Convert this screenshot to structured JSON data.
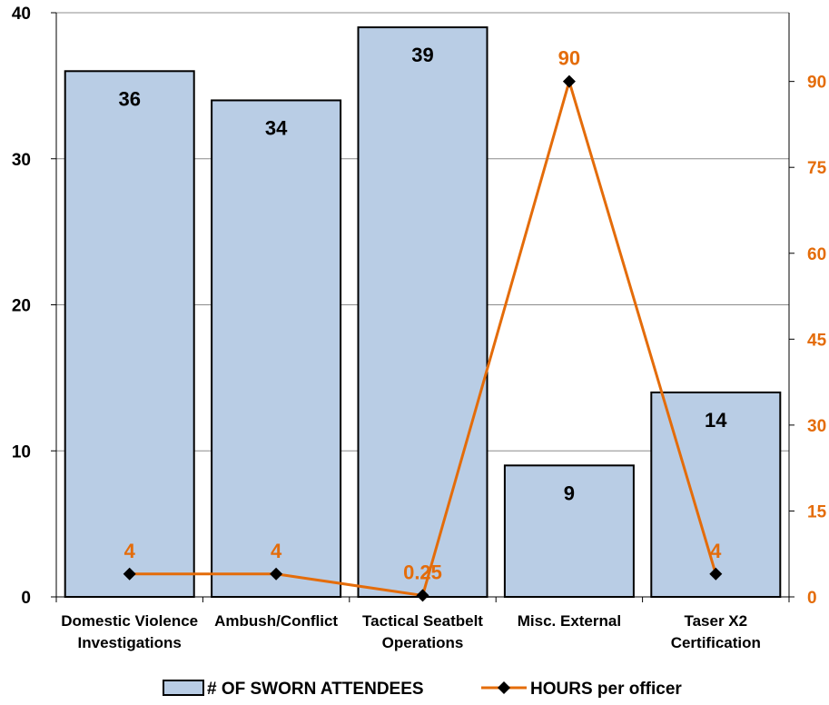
{
  "chart_data": {
    "type": "bar",
    "title": "",
    "xlabel": "",
    "ylabel": "",
    "categories": [
      [
        "Domestic Violence",
        "Investigations"
      ],
      [
        "Ambush/Conflict"
      ],
      [
        "Tactical Seatbelt",
        "Operations"
      ],
      [
        "Misc. External"
      ],
      [
        "Taser X2",
        "Certification"
      ]
    ],
    "series": [
      {
        "name": "# OF SWORN ATTENDEES",
        "type": "bar",
        "axis": "left",
        "values": [
          36,
          34,
          39,
          9,
          14
        ],
        "labels": [
          "36",
          "34",
          "39",
          "9",
          "14"
        ],
        "color": "#b9cde5",
        "stroke": "#000000"
      },
      {
        "name": "HOURS per officer",
        "type": "line",
        "axis": "right",
        "values": [
          4,
          4,
          0.25,
          90,
          4
        ],
        "labels": [
          "4",
          "4",
          "0.25",
          "90",
          "4"
        ],
        "color": "#e46c0a",
        "marker": "diamond",
        "marker_color": "#000000"
      }
    ],
    "y_left": {
      "min": 0,
      "max": 40,
      "ticks": [
        "0",
        "10",
        "20",
        "30",
        "40"
      ]
    },
    "y_right": {
      "min": 0,
      "max": 102,
      "ticks": [
        "0",
        "15",
        "30",
        "45",
        "60",
        "75",
        "90"
      ]
    },
    "grid": true,
    "legend": "bottom"
  }
}
